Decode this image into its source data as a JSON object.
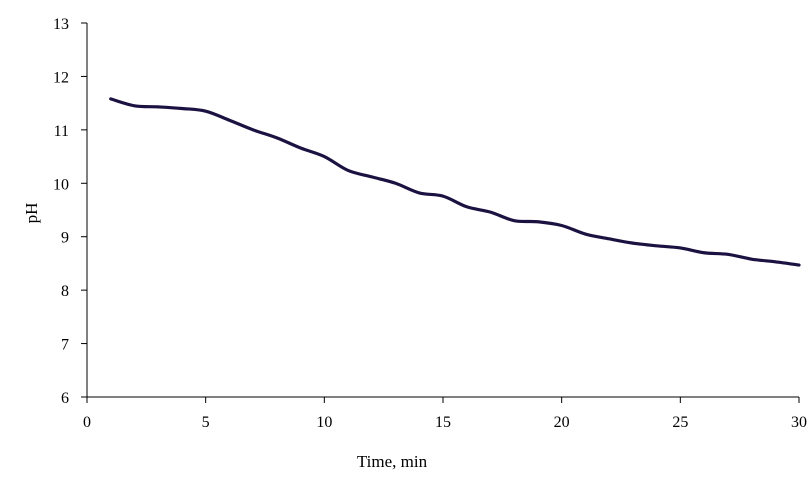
{
  "chart_data": {
    "type": "line",
    "title": "",
    "xlabel": "Time, min",
    "ylabel": "pH",
    "xlim": [
      0,
      30
    ],
    "ylim": [
      6,
      13
    ],
    "xticks": [
      0,
      5,
      10,
      15,
      20,
      25,
      30
    ],
    "yticks": [
      6,
      7,
      8,
      9,
      10,
      11,
      12,
      13
    ],
    "grid": false,
    "legend": "none",
    "series": [
      {
        "color": "#1c1242",
        "x": [
          1,
          2,
          3,
          4,
          5,
          6,
          7,
          8,
          9,
          10,
          11,
          12,
          13,
          14,
          15,
          16,
          17,
          18,
          19,
          20,
          21,
          22,
          23,
          24,
          25,
          26,
          27,
          28,
          29,
          30
        ],
        "y": [
          11.58,
          11.45,
          11.43,
          11.4,
          11.35,
          11.18,
          11.0,
          10.85,
          10.66,
          10.5,
          10.24,
          10.12,
          10.0,
          9.82,
          9.76,
          9.56,
          9.46,
          9.3,
          9.28,
          9.21,
          9.05,
          8.96,
          8.88,
          8.83,
          8.79,
          8.7,
          8.67,
          8.58,
          8.53,
          8.47
        ]
      }
    ]
  }
}
